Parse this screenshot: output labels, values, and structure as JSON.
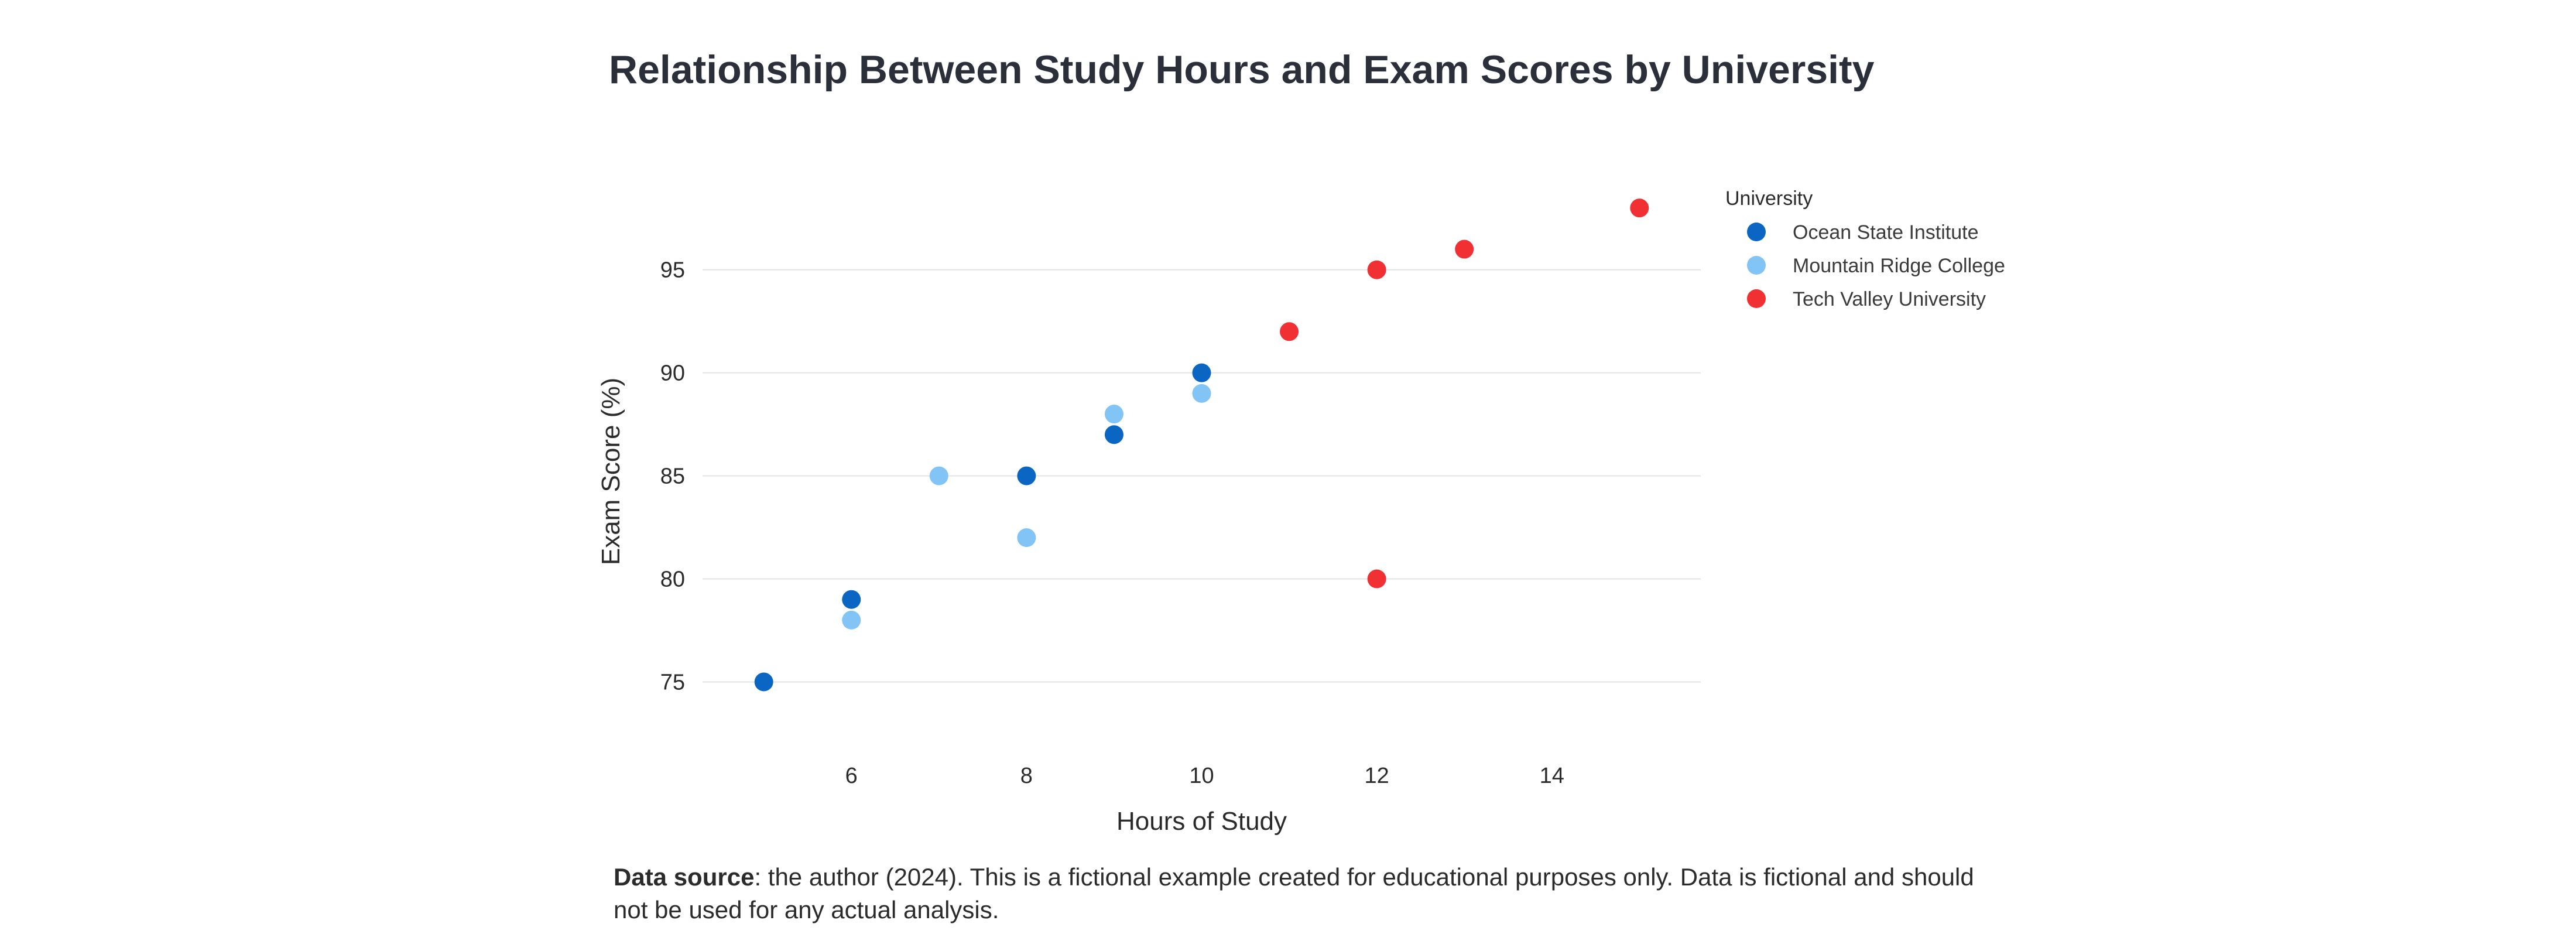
{
  "chart_data": {
    "type": "scatter",
    "title": "Relationship Between Study Hours and Exam Scores by University",
    "xlabel": "Hours of Study",
    "ylabel": "Exam Score (%)",
    "xlim": [
      4.3,
      15.7
    ],
    "ylim": [
      72,
      99
    ],
    "xticks": [
      6,
      8,
      10,
      12,
      14
    ],
    "yticks": [
      75,
      80,
      85,
      90,
      95
    ],
    "grid": "horizontal",
    "legend": {
      "title": "University",
      "position": "top-right, outside plot"
    },
    "series": [
      {
        "name": "Ocean State Institute",
        "color": "#0b66c3",
        "x": [
          5,
          6,
          8,
          9,
          10
        ],
        "y": [
          75,
          79,
          85,
          87,
          90
        ]
      },
      {
        "name": "Mountain Ridge College",
        "color": "#82c4f5",
        "x": [
          6,
          7,
          8,
          9,
          10
        ],
        "y": [
          78,
          85,
          82,
          88,
          89
        ]
      },
      {
        "name": "Tech Valley University",
        "color": "#f03032",
        "x": [
          11,
          12,
          12,
          13,
          15
        ],
        "y": [
          92,
          95,
          80,
          96,
          98
        ]
      }
    ]
  },
  "caption": {
    "source_label": "Data source",
    "source_text": ": the author (2024). This is a fictional example created for educational purposes only. Data is fictional and should not be used for any actual analysis."
  }
}
